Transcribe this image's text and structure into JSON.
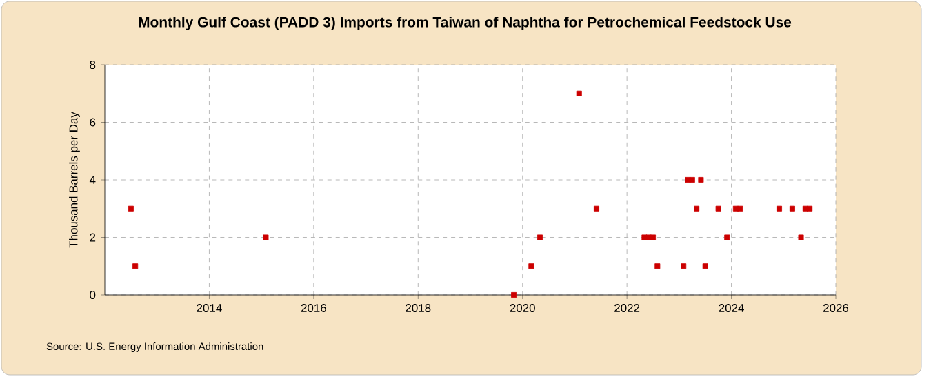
{
  "chart_data": {
    "type": "scatter",
    "title": "Monthly Gulf Coast (PADD 3) Imports from Taiwan of Naphtha for Petrochemical Feedstock Use",
    "ylabel": "Thousand Barrels per Day",
    "annotations": [
      "Source: U.S. Energy Information Administration"
    ],
    "x": [
      "2012-07",
      "2012-08",
      "2015-02",
      "2019-11",
      "2020-03",
      "2020-05",
      "2021-02",
      "2021-06",
      "2022-05",
      "2022-06",
      "2022-07",
      "2022-08",
      "2023-02",
      "2023-03",
      "2023-04",
      "2023-05",
      "2023-06",
      "2023-07",
      "2023-10",
      "2023-12",
      "2024-02",
      "2024-03",
      "2024-12",
      "2025-03",
      "2025-05",
      "2025-06",
      "2025-07"
    ],
    "values": [
      3,
      1,
      2,
      0,
      1,
      2,
      7,
      3,
      2,
      2,
      2,
      1,
      1,
      4,
      4,
      3,
      4,
      1,
      3,
      2,
      3,
      3,
      3,
      3,
      2,
      3,
      3
    ],
    "color": "#cc0000",
    "marker": "square",
    "xlim": [
      "2012-01",
      "2026-01"
    ],
    "xticks": [
      "2014",
      "2016",
      "2018",
      "2020",
      "2022",
      "2024",
      "2026"
    ],
    "ylim": [
      0,
      8
    ],
    "yticks": [
      0,
      2,
      4,
      6,
      8
    ],
    "grid": true
  }
}
